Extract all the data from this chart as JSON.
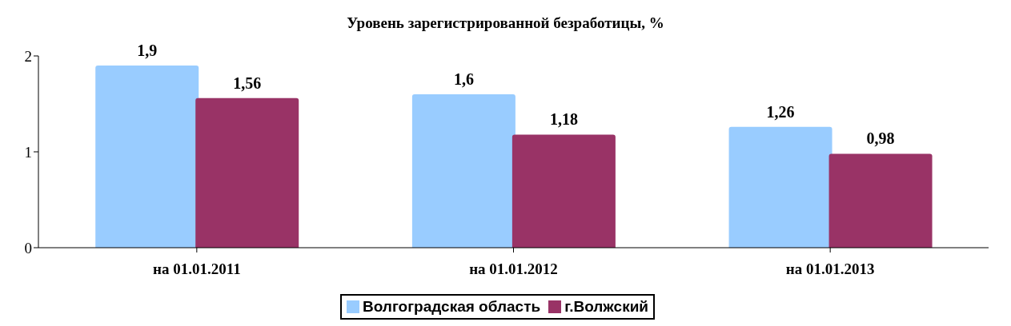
{
  "chart_data": {
    "type": "bar",
    "title": "Уровень зарегистрированной безработицы, %",
    "categories": [
      "на 01.01.2011",
      "на 01.01.2012",
      "на 01.01.2013"
    ],
    "series": [
      {
        "name": "Волгоградская область",
        "color": "#99ccff",
        "values": [
          1.9,
          1.6,
          1.26
        ],
        "value_labels": [
          "1,9",
          "1,6",
          "1,26"
        ]
      },
      {
        "name": "г.Волжский",
        "color": "#993366",
        "values": [
          1.56,
          1.18,
          0.98
        ],
        "value_labels": [
          "1,56",
          "1,18",
          "0,98"
        ]
      }
    ],
    "ylim": [
      0,
      2
    ],
    "yticks": [
      0,
      1,
      2
    ],
    "grid": false,
    "legend": "bottom"
  }
}
